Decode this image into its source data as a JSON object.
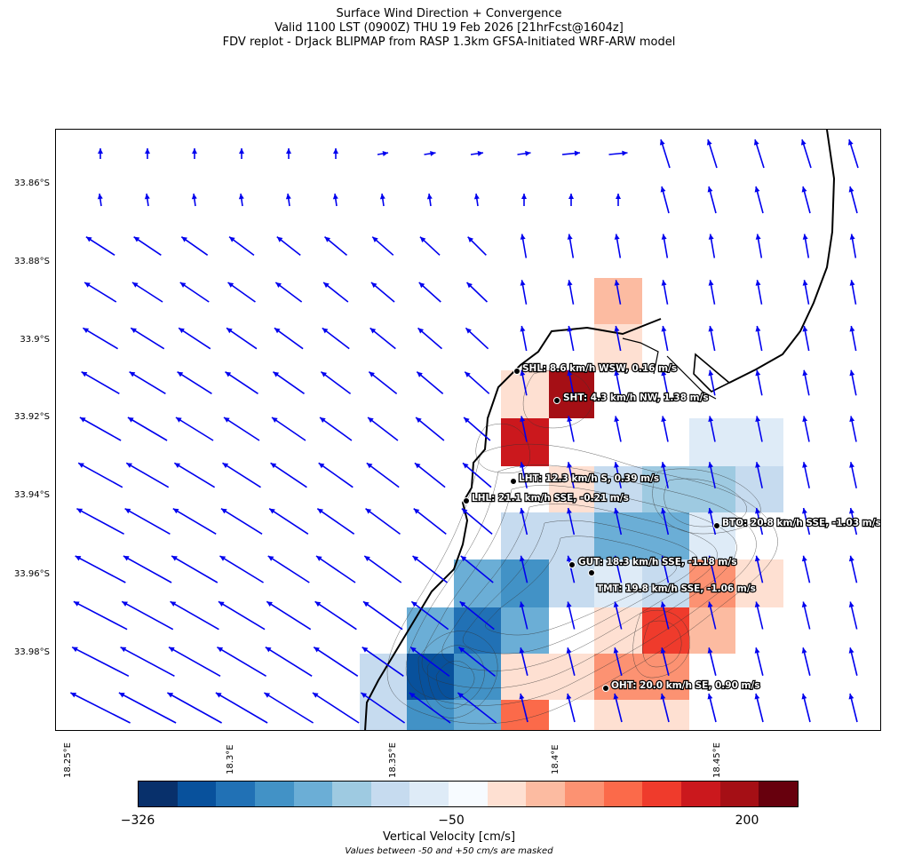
{
  "title": {
    "line1": "Surface Wind Direction + Convergence",
    "line2": "Valid 1100 LST (0900Z) THU 19 Feb 2026 [21hrFcst@1604z]",
    "line3": "FDV replot - DrJack BLIPMAP from RASP 1.3km GFSA-Initiated WRF-ARW model"
  },
  "map": {
    "lat_ticks": [
      "33.86°S",
      "33.88°S",
      "33.9°S",
      "33.92°S",
      "33.94°S",
      "33.96°S",
      "33.98°S"
    ],
    "lon_ticks": [
      "18.25°E",
      "18.3°E",
      "18.35°E",
      "18.4°E",
      "18.45°E"
    ],
    "arrow_color": "#0000ee",
    "coast_color": "#000000",
    "stations": [
      {
        "code": "SHL",
        "text": "SHL: 8.6 km/h WSW, 0.16 m/s"
      },
      {
        "code": "SHT",
        "text": "SHT: 4.3 km/h NW, 1.38 m/s"
      },
      {
        "code": "LHT",
        "text": "LHT: 12.3 km/h S, 0.39 m/s"
      },
      {
        "code": "LHL",
        "text": "LHL: 21.1 km/h SSE, -0.21 m/s"
      },
      {
        "code": "BTO",
        "text": "BTO: 20.8 km/h SSE, -1.03 m/s"
      },
      {
        "code": "GUT",
        "text": "GUT: 18.3 km/h SSE, -1.18 m/s"
      },
      {
        "code": "TMT",
        "text": "TMT: 19.8 km/h SSE, -1.06 m/s"
      },
      {
        "code": "OHT",
        "text": "OHT: 20.0 km/h SE, 0.90 m/s"
      }
    ]
  },
  "colorbar": {
    "colors": [
      "#08306b",
      "#08519c",
      "#2171b5",
      "#4292c6",
      "#6baed6",
      "#9ecae1",
      "#c6dbef",
      "#deebf7",
      "#f7fbff",
      "#fee0d2",
      "#fcbba1",
      "#fc9272",
      "#fb6a4a",
      "#ef3b2c",
      "#cb181d",
      "#a50f15",
      "#67000d"
    ],
    "tick_min": "−326",
    "tick_mid": "−50",
    "tick_max": "200",
    "label": "Vertical Velocity [cm/s]",
    "note": "Values between -50 and +50 cm/s are masked"
  }
}
